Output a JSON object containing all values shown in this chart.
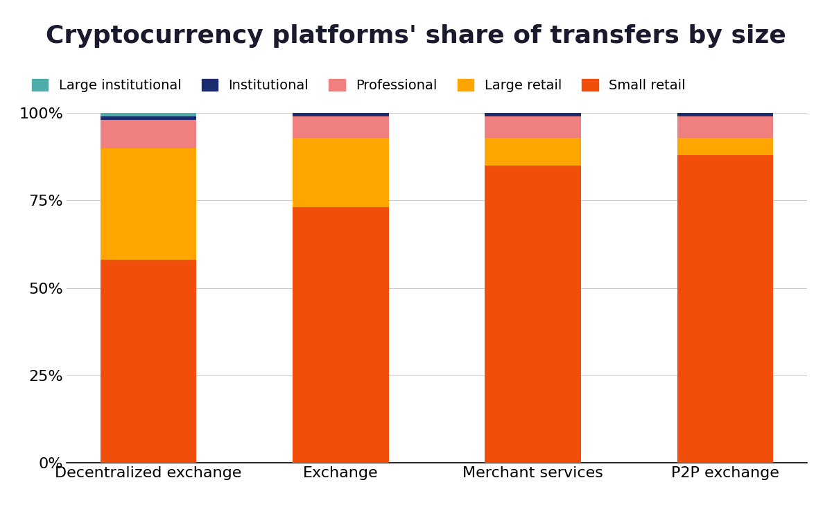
{
  "title": "Cryptocurrency platforms' share of transfers by size",
  "categories": [
    "Decentralized exchange",
    "Exchange",
    "Merchant services",
    "P2P exchange"
  ],
  "series": {
    "Small retail": [
      58,
      73,
      85,
      88
    ],
    "Large retail": [
      32,
      20,
      8,
      5
    ],
    "Professional": [
      8,
      6,
      6,
      6
    ],
    "Institutional": [
      1,
      1,
      1,
      1
    ],
    "Large institutional": [
      1,
      0,
      0,
      0
    ]
  },
  "colors": {
    "Small retail": "#F04E0A",
    "Large retail": "#FFA500",
    "Professional": "#F08080",
    "Institutional": "#1C2B6E",
    "Large institutional": "#4EADA8"
  },
  "legend_order": [
    "Large institutional",
    "Institutional",
    "Professional",
    "Large retail",
    "Small retail"
  ],
  "ylim": [
    0,
    100
  ],
  "yticks": [
    0,
    25,
    50,
    75,
    100
  ],
  "yticklabels": [
    "0%",
    "25%",
    "50%",
    "75%",
    "100%"
  ],
  "background_color": "#ffffff",
  "title_fontsize": 26,
  "tick_fontsize": 16,
  "legend_fontsize": 14,
  "bar_width": 0.5
}
